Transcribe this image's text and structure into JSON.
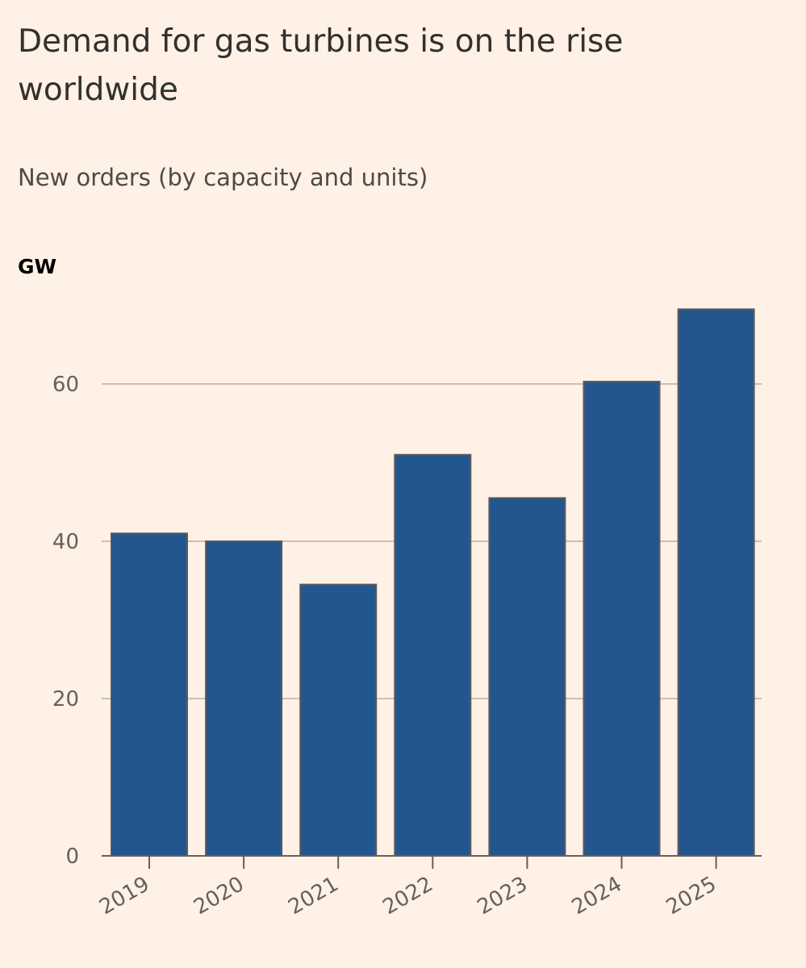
{
  "chart_data": {
    "type": "bar",
    "title": "Demand for gas turbines is on the rise worldwide",
    "subtitle": "New orders (by capacity and units)",
    "ylabel": "GW",
    "xlabel": "",
    "categories": [
      "2019",
      "2020",
      "2021",
      "2022",
      "2023",
      "2024",
      "2025"
    ],
    "values": [
      41,
      40,
      34.5,
      51,
      45.5,
      60.3,
      69.5
    ],
    "ylim": [
      0,
      70
    ],
    "yticks": [
      0,
      20,
      40,
      60
    ],
    "grid": true,
    "bar_color": "#23568f",
    "bar_edge_color": "#5a5a5a",
    "grid_color": "#cdbfb5",
    "axis_color": "#66605c"
  }
}
